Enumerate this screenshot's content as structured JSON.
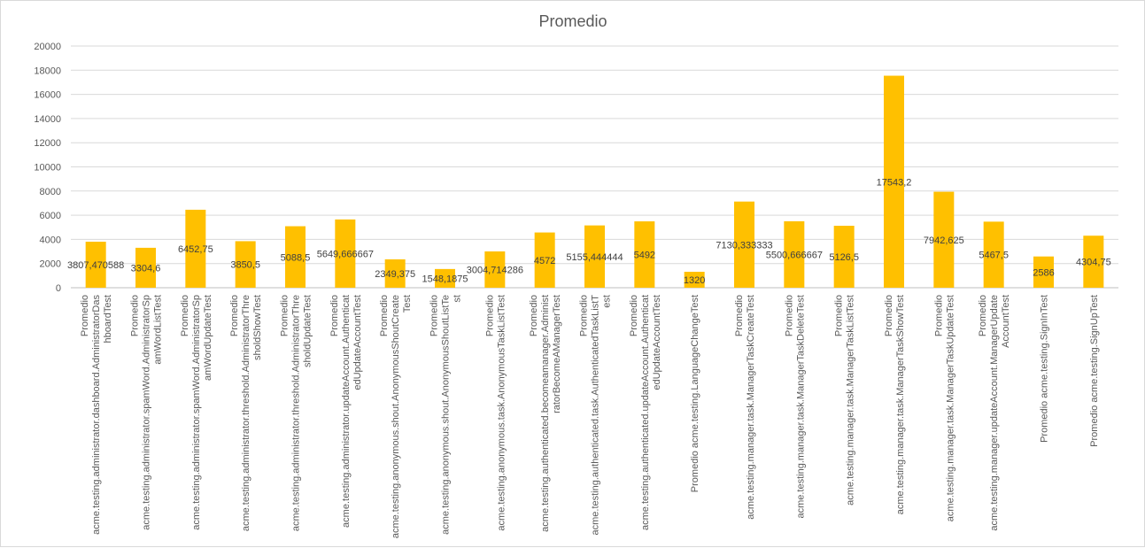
{
  "chart_data": {
    "type": "bar",
    "title": "Promedio",
    "xlabel": "",
    "ylabel": "",
    "ylim": [
      0,
      20000
    ],
    "yticks": [
      0,
      2000,
      4000,
      6000,
      8000,
      10000,
      12000,
      14000,
      16000,
      18000,
      20000
    ],
    "grid": true,
    "bar_color": "#FFC000",
    "categories": [
      [
        "Promedio",
        "acme.testing.administrator.dashboard.AdministratorDas",
        "hboardTest"
      ],
      [
        "Promedio",
        "acme.testing.administrator.spamWord.AdministratorSp",
        "amWordListTest"
      ],
      [
        "Promedio",
        "acme.testing.administrator.spamWord.AdministratorSp",
        "amWordUpdateTest"
      ],
      [
        "Promedio",
        "acme.testing.administrator.threshold.AdministratorThre",
        "sholdShowTest"
      ],
      [
        "Promedio",
        "acme.testing.administrator.threshold.AdministratorThre",
        "sholdUpdateTest"
      ],
      [
        "Promedio",
        "acme.testing.administrator.updateAccount.Authenticat",
        "edUpdateAccountTest"
      ],
      [
        "Promedio",
        "acme.testing.anonymous.shout.AnonymousShoutCreate",
        "Test"
      ],
      [
        "Promedio",
        "acme.testing.anonymous.shout.AnonymousShoutListTe",
        "st"
      ],
      [
        "Promedio",
        "acme.testing.anonymous.task.AnonymousTaskListTest"
      ],
      [
        "Promedio",
        "acme.testing.authenticated.becomeamanager.Administ",
        "ratorBecomeAManagerTest"
      ],
      [
        "Promedio",
        "acme.testing.authenticated.task.AuthenticatedTaskListT",
        "est"
      ],
      [
        "Promedio",
        "acme.testing.authenticated.updateAccount.Authenticat",
        "edUpdateAccountTest"
      ],
      [
        "Promedio acme.testing.LanguageChangeTest"
      ],
      [
        "Promedio",
        "acme.testing.manager.task.ManagerTaskCreateTest"
      ],
      [
        "Promedio",
        "acme.testing.manager.task.ManagerTaskDeleteTest"
      ],
      [
        "Promedio",
        "acme.testing.manager.task.ManagerTaskListTest"
      ],
      [
        "Promedio",
        "acme.testing.manager.task.ManagerTaskShowTest"
      ],
      [
        "Promedio",
        "acme.testing.manager.task.ManagerTaskUpdateTest"
      ],
      [
        "Promedio",
        "acme.testing.manager.updateAccount.ManagerUpdate",
        "AccountTest"
      ],
      [
        "Promedio acme.testing.SignInTest"
      ],
      [
        "Promedio acme.testing.SignUpTest"
      ]
    ],
    "values": [
      3807.470588,
      3304.6,
      6452.75,
      3850.5,
      5088.5,
      5649.666667,
      2349.375,
      1548.1875,
      3004.714286,
      4572,
      5155.444444,
      5492,
      1320,
      7130.333333,
      5500.666667,
      5126.5,
      17543.2,
      7942.625,
      5467.5,
      2586,
      4304.75
    ],
    "data_labels": [
      "3807,470588",
      "3304,6",
      "6452,75",
      "3850,5",
      "5088,5",
      "5649,666667",
      "2349,375",
      "1548,1875",
      "3004,714286",
      "4572",
      "5155,444444",
      "5492",
      "1320",
      "7130,333333",
      "5500,666667",
      "5126,5",
      "17543,2",
      "7942,625",
      "5467,5",
      "2586",
      "4304,75"
    ]
  }
}
